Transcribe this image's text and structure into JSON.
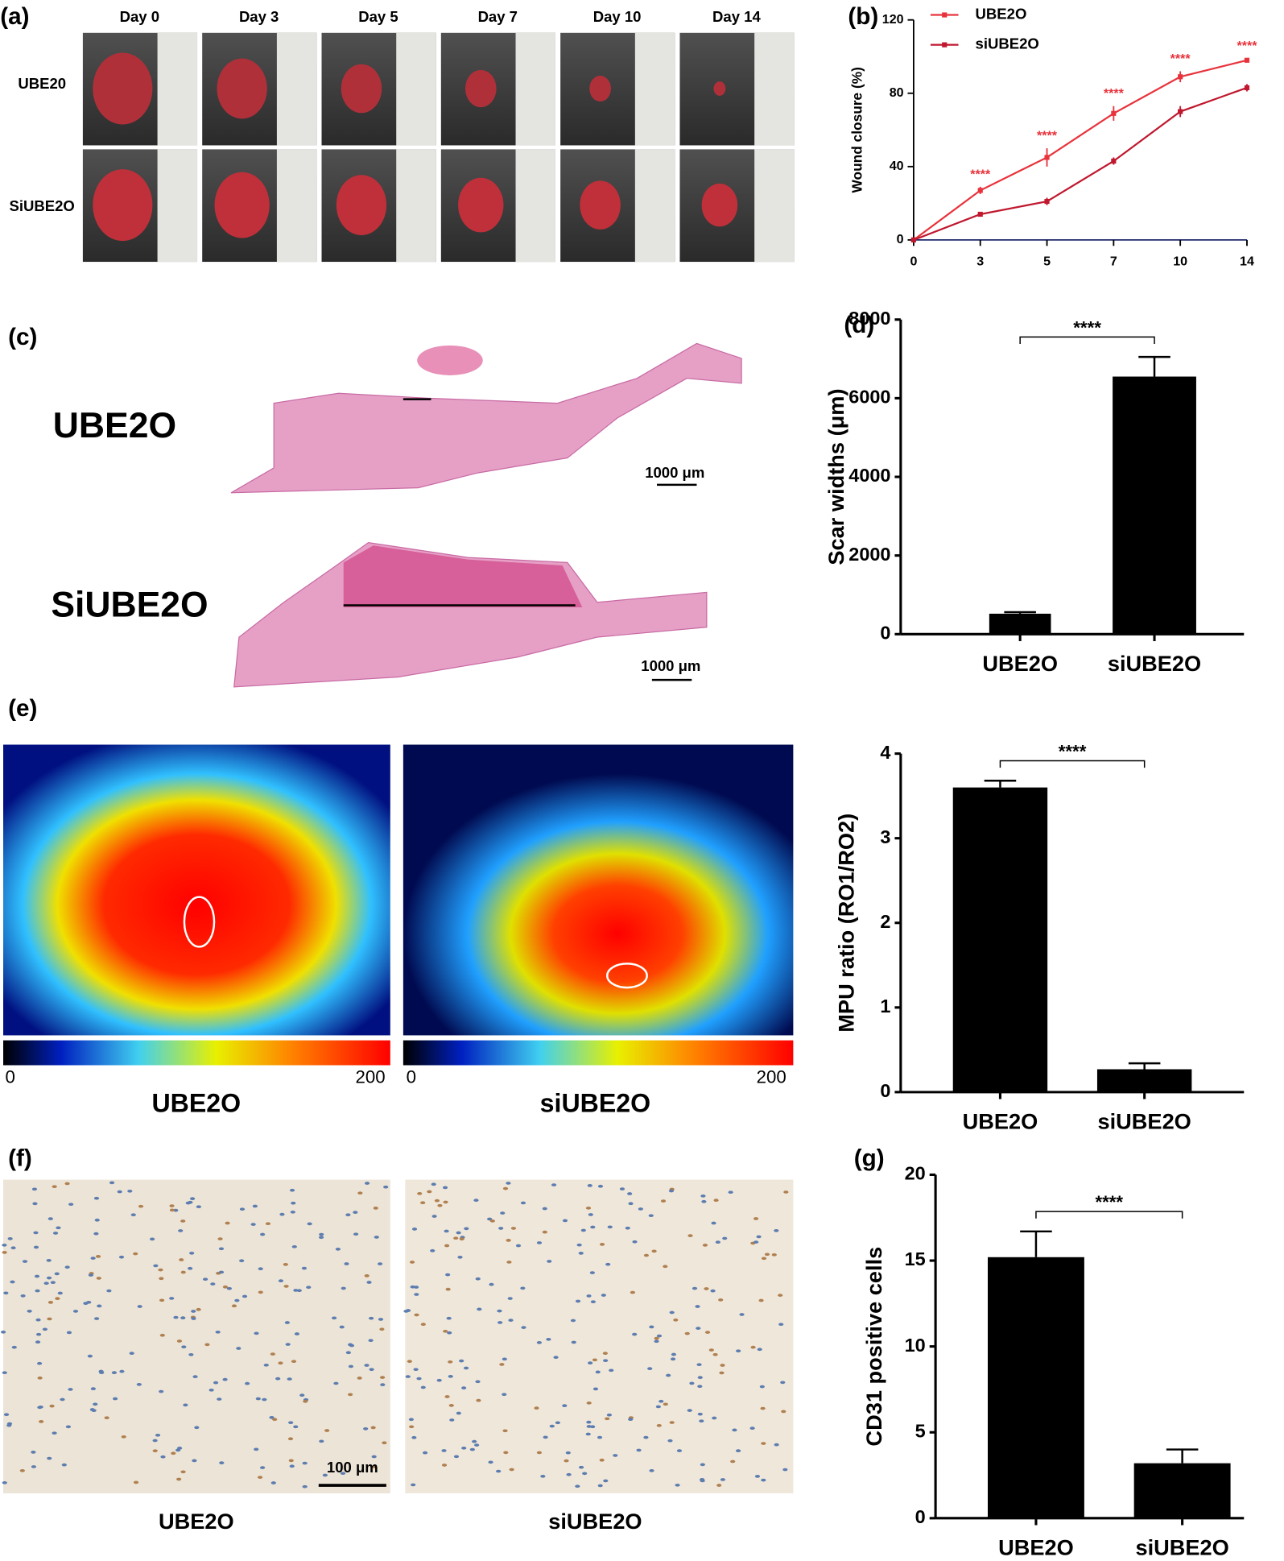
{
  "panels": {
    "a": {
      "label": "(a)",
      "days": [
        "Day 0",
        "Day 3",
        "Day 5",
        "Day 7",
        "Day 10",
        "Day 14"
      ],
      "rows": [
        "UBE20",
        "SiUBE2O"
      ]
    },
    "b": {
      "label": "(b)"
    },
    "c": {
      "label": "(c)",
      "rows": [
        "UBE2O",
        "SiUBE2O"
      ],
      "scale_bars": [
        "1000 μm",
        "1000 μm"
      ]
    },
    "d": {
      "label": "(d)"
    },
    "e": {
      "label": "(e)",
      "colorbar": [
        "0",
        "200",
        "0",
        "200"
      ],
      "captions": [
        "UBE2O",
        "siUBE2O"
      ]
    },
    "f": {
      "label": "(f)",
      "captions": [
        "UBE2O",
        "siUBE2O"
      ],
      "scale_bar": "100 μm"
    },
    "g": {
      "label": "(g)"
    }
  },
  "chart_data": [
    {
      "type": "line",
      "ylabel": "Wound closure (%)",
      "categories": [
        "0",
        "3",
        "5",
        "7",
        "10",
        "14"
      ],
      "series": [
        {
          "name": "UBE2O",
          "color": "#e8333c",
          "values": [
            0,
            27,
            45,
            69,
            89,
            98
          ],
          "errors": [
            0,
            2,
            5,
            4,
            3,
            1
          ]
        },
        {
          "name": "siUBE2O",
          "color": "#c0182f",
          "values": [
            0,
            14,
            21,
            43,
            70,
            83
          ],
          "errors": [
            0,
            1,
            2,
            2,
            3,
            2
          ]
        }
      ],
      "annotations": [
        null,
        "****",
        "****",
        "****",
        "****",
        "****"
      ],
      "annotation_color": "#e8333c",
      "ylim": [
        0,
        120
      ],
      "yticks": [
        0,
        40,
        80,
        120
      ],
      "legend": "top-left"
    },
    {
      "type": "bar",
      "ylabel": "Scar widths (μm)",
      "categories": [
        "UBE2O",
        "siUBE2O"
      ],
      "values": [
        520,
        6550
      ],
      "errors": [
        40,
        500
      ],
      "color": "#000000",
      "significance": "****",
      "ylim": [
        0,
        8000
      ],
      "yticks": [
        0,
        2000,
        4000,
        6000,
        8000
      ]
    },
    {
      "type": "bar",
      "ylabel": "MPU ratio (RO1/RO2)",
      "categories": [
        "UBE2O",
        "siUBE2O"
      ],
      "values": [
        3.6,
        0.27
      ],
      "errors": [
        0.08,
        0.07
      ],
      "color": "#000000",
      "significance": "****",
      "ylim": [
        0,
        4
      ],
      "yticks": [
        0,
        1,
        2,
        3,
        4
      ]
    },
    {
      "type": "bar",
      "ylabel": "CD31 positive cells",
      "categories": [
        "UBE2O",
        "siUBE2O"
      ],
      "values": [
        15.2,
        3.2
      ],
      "errors": [
        1.5,
        0.8
      ],
      "color": "#000000",
      "significance": "****",
      "ylim": [
        0,
        20
      ],
      "yticks": [
        0,
        5,
        10,
        15,
        20
      ]
    }
  ]
}
